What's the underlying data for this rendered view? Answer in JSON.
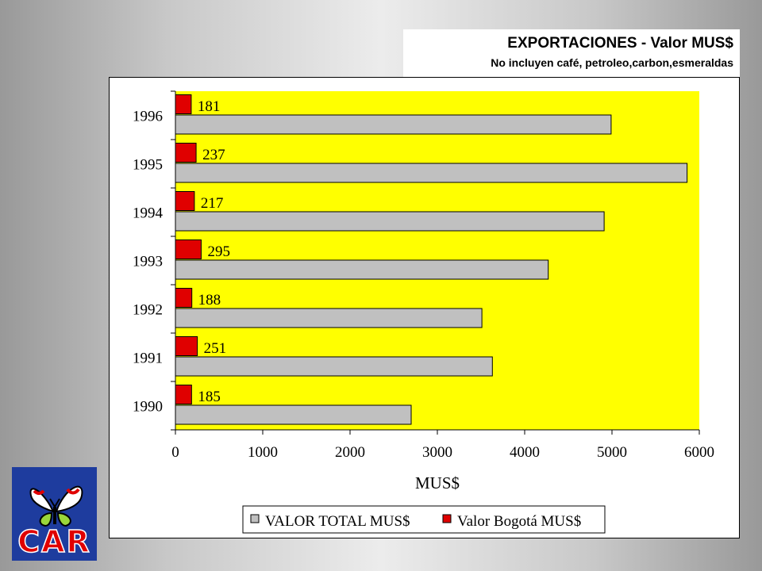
{
  "title": "EXPORTACIONES - Valor MUS$",
  "subtitle": "No incluyen café, petroleo,carbon,esmeraldas",
  "logo_text": "CAR",
  "colors": {
    "plot_background": "#ffff00",
    "total_bar": "#c0c0c0",
    "bogota_bar": "#e00000",
    "logo_background": "#1e3c9e",
    "logo_letters": "#e00000"
  },
  "chart_data": {
    "type": "bar",
    "orientation": "horizontal",
    "categories": [
      "1996",
      "1995",
      "1994",
      "1993",
      "1992",
      "1991",
      "1990"
    ],
    "series": [
      {
        "name": "VALOR TOTAL MUS$",
        "values": [
          4990,
          5860,
          4910,
          4270,
          3510,
          3630,
          2700
        ]
      },
      {
        "name": "Valor Bogotá MUS$",
        "values": [
          181,
          237,
          217,
          295,
          188,
          251,
          185
        ],
        "data_labels": [
          "181",
          "237",
          "217",
          "295",
          "188",
          "251",
          "185"
        ]
      }
    ],
    "xlabel": "MUS$",
    "xlim": [
      0,
      6000
    ],
    "xticks": [
      "0",
      "1000",
      "2000",
      "3000",
      "4000",
      "5000",
      "6000"
    ],
    "grid": false,
    "legend": "bottom"
  }
}
